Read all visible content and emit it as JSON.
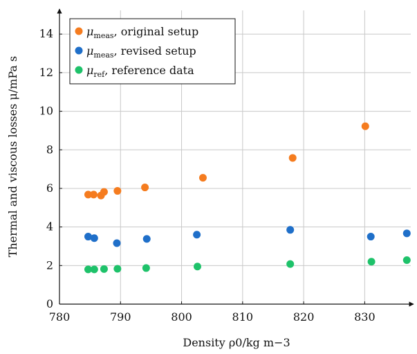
{
  "chart_data": {
    "type": "scatter",
    "xlabel": "Density ρ0/kg m−3",
    "ylabel": "Thermal and viscous losses μ/mPa s",
    "xlim": [
      780,
      838
    ],
    "ylim": [
      0,
      15.3
    ],
    "xticks": [
      780,
      790,
      800,
      810,
      820,
      830
    ],
    "yticks": [
      0,
      2,
      4,
      6,
      8,
      10,
      12,
      14
    ],
    "grid": true,
    "legend_position": "top-left",
    "series": [
      {
        "name": "μmeas, original setup",
        "symbol": "μ",
        "subscript": "meas",
        "suffix": ", original setup",
        "color": "#f57c1f",
        "points": [
          {
            "x": 784.7,
            "y": 5.68
          },
          {
            "x": 785.6,
            "y": 5.68
          },
          {
            "x": 786.8,
            "y": 5.63
          },
          {
            "x": 787.3,
            "y": 5.82
          },
          {
            "x": 789.5,
            "y": 5.87
          },
          {
            "x": 794.0,
            "y": 6.05
          },
          {
            "x": 803.5,
            "y": 6.55
          },
          {
            "x": 818.2,
            "y": 7.58
          },
          {
            "x": 830.1,
            "y": 9.22
          }
        ]
      },
      {
        "name": "μmeas, revised setup",
        "symbol": "μ",
        "subscript": "meas",
        "suffix": ", revised setup",
        "color": "#1f6fc9",
        "points": [
          {
            "x": 784.7,
            "y": 3.5
          },
          {
            "x": 785.7,
            "y": 3.42
          },
          {
            "x": 789.4,
            "y": 3.16
          },
          {
            "x": 794.3,
            "y": 3.38
          },
          {
            "x": 802.5,
            "y": 3.6
          },
          {
            "x": 817.8,
            "y": 3.85
          },
          {
            "x": 831.0,
            "y": 3.5
          },
          {
            "x": 836.9,
            "y": 3.67
          }
        ]
      },
      {
        "name": "μref, reference data",
        "symbol": "μ",
        "subscript": "ref",
        "suffix": ", reference data",
        "color": "#1ec26a",
        "points": [
          {
            "x": 784.7,
            "y": 1.8
          },
          {
            "x": 785.7,
            "y": 1.8
          },
          {
            "x": 787.3,
            "y": 1.82
          },
          {
            "x": 789.5,
            "y": 1.83
          },
          {
            "x": 794.2,
            "y": 1.87
          },
          {
            "x": 802.6,
            "y": 1.95
          },
          {
            "x": 817.8,
            "y": 2.08
          },
          {
            "x": 831.1,
            "y": 2.2
          },
          {
            "x": 836.9,
            "y": 2.28
          }
        ]
      }
    ]
  }
}
